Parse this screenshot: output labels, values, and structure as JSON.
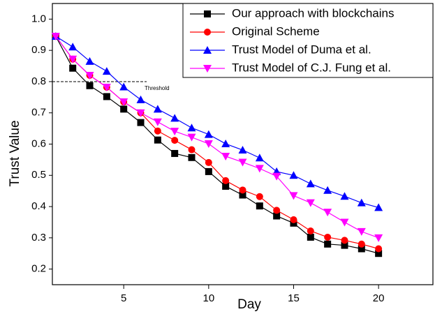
{
  "chart_data": {
    "type": "line",
    "x_label": "Day",
    "y_label": "Trust Value",
    "x": [
      1,
      2,
      3,
      4,
      5,
      6,
      7,
      8,
      9,
      10,
      11,
      12,
      13,
      14,
      15,
      16,
      17,
      18,
      19,
      20
    ],
    "series": [
      {
        "name": "Our approach with blockchains",
        "color": "#000000",
        "marker": "square",
        "values": [
          0.945,
          0.843,
          0.787,
          0.752,
          0.712,
          0.669,
          0.613,
          0.57,
          0.557,
          0.512,
          0.465,
          0.437,
          0.402,
          0.37,
          0.347,
          0.302,
          0.28,
          0.276,
          0.265,
          0.25
        ]
      },
      {
        "name": "Original Scheme",
        "color": "#ff0000",
        "marker": "circle",
        "values": [
          0.945,
          0.872,
          0.82,
          0.782,
          0.735,
          0.7,
          0.642,
          0.612,
          0.582,
          0.541,
          0.483,
          0.453,
          0.432,
          0.388,
          0.358,
          0.322,
          0.302,
          0.292,
          0.28,
          0.265
        ]
      },
      {
        "name": "Trust Model of Duma et al.",
        "color": "#0000ff",
        "marker": "triangle-up",
        "values": [
          0.945,
          0.911,
          0.865,
          0.833,
          0.783,
          0.742,
          0.712,
          0.683,
          0.652,
          0.631,
          0.601,
          0.581,
          0.556,
          0.512,
          0.5,
          0.473,
          0.452,
          0.433,
          0.412,
          0.397
        ]
      },
      {
        "name": "Trust Model of C.J. Fung et al.",
        "color": "#ff00ff",
        "marker": "triangle-down",
        "values": [
          0.945,
          0.872,
          0.82,
          0.782,
          0.735,
          0.7,
          0.671,
          0.641,
          0.622,
          0.601,
          0.561,
          0.542,
          0.522,
          0.497,
          0.435,
          0.412,
          0.382,
          0.35,
          0.32,
          0.3
        ]
      }
    ],
    "threshold": {
      "value": 0.8,
      "label": "Threshold"
    },
    "xlim": [
      0.8,
      23.2
    ],
    "ylim": [
      0.15,
      1.05
    ],
    "xticks": [
      5,
      10,
      15,
      20
    ],
    "yticks": [
      0.2,
      0.3,
      0.4,
      0.5,
      0.6,
      0.7,
      0.8,
      0.9,
      {
        "value": 1,
        "label": "1.0"
      }
    ],
    "legend": "upper right"
  }
}
